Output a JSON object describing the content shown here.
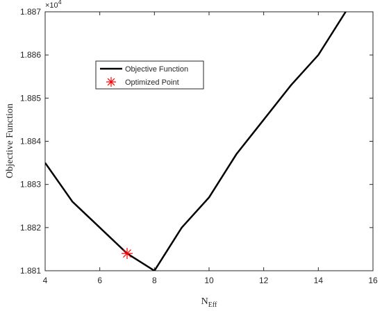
{
  "chart_data": {
    "type": "line",
    "xlabel": {
      "main": "N",
      "sub": "Eff"
    },
    "ylabel": "Objective Function",
    "y_exponent": {
      "base": "×10",
      "power": "4"
    },
    "xlim": [
      4,
      16
    ],
    "xticks": [
      4,
      6,
      8,
      10,
      12,
      14,
      16
    ],
    "ylim": [
      1.881,
      1.887
    ],
    "yticks": [
      1.881,
      1.882,
      1.883,
      1.884,
      1.885,
      1.886,
      1.887
    ],
    "legend": "northwest",
    "series": [
      {
        "name": "Objective Function",
        "color": "#000000",
        "marker": "none",
        "x": [
          4,
          5,
          6,
          7,
          8,
          9,
          10,
          11,
          12,
          13,
          14,
          15
        ],
        "values": [
          1.8835,
          1.8826,
          1.882,
          1.8814,
          1.881,
          1.882,
          1.8827,
          1.8837,
          1.8845,
          1.8853,
          1.886,
          1.887
        ]
      },
      {
        "name": "Optimized Point",
        "color": "#ff0000",
        "marker": "asterisk",
        "x": [
          7
        ],
        "values": [
          1.8814
        ]
      }
    ]
  }
}
